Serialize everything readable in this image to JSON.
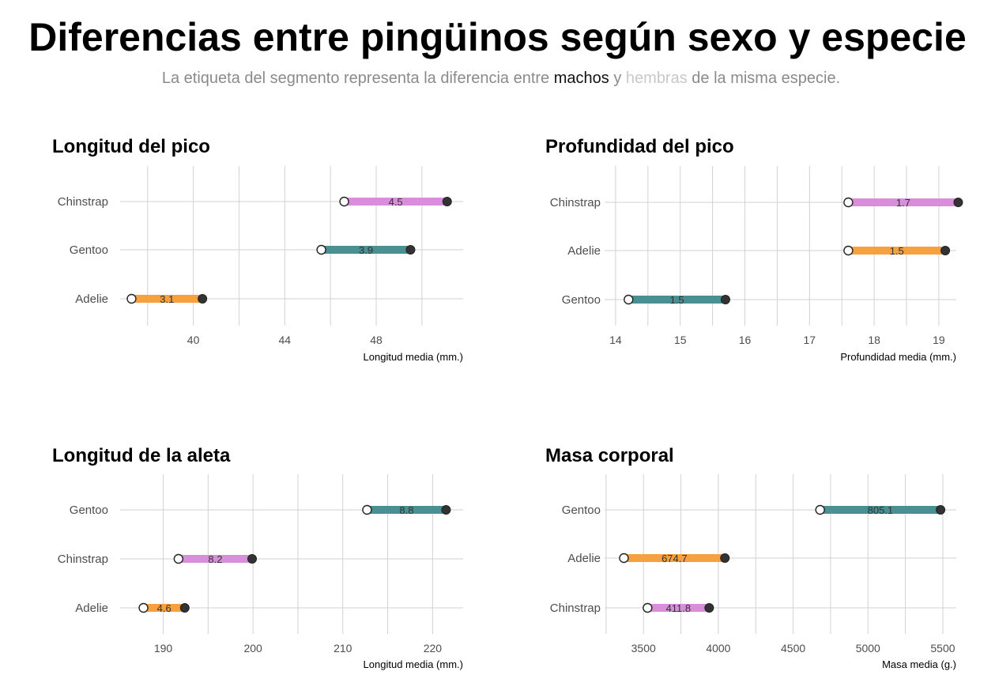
{
  "header": {
    "title": "Diferencias entre pingüinos según sexo y especie",
    "subtitle_pre": "La etiqueta del segmento representa la diferencia entre ",
    "subtitle_male": "machos",
    "subtitle_mid": " y ",
    "subtitle_female": "hembras",
    "subtitle_post": " de la misma especie."
  },
  "colors": {
    "Chinstrap": "#d88fd9",
    "Gentoo": "#4a8f91",
    "Adelie": "#f7a040",
    "male_point": "#333333",
    "female_point": "#ffffff",
    "grid": "#d2d2d2"
  },
  "chart_data": [
    {
      "type": "dumbbell",
      "title": "Longitud del pico",
      "xlabel": "Longitud media (mm.)",
      "xlim": [
        36.8,
        51.8
      ],
      "xticks": [
        40,
        44,
        48
      ],
      "categories": [
        "Chinstrap",
        "Gentoo",
        "Adelie"
      ],
      "series": [
        {
          "name": "hembras",
          "values": [
            46.6,
            45.6,
            37.3
          ]
        },
        {
          "name": "machos",
          "values": [
            51.1,
            49.5,
            40.4
          ]
        }
      ],
      "labels": [
        "4.5",
        "3.9",
        "3.1"
      ]
    },
    {
      "type": "dumbbell",
      "title": "Profundidad del pico",
      "xlabel": "Profundidad media (mm.)",
      "xlim": [
        13.83,
        19.27
      ],
      "xticks": [
        14,
        15,
        16,
        17,
        18,
        19
      ],
      "categories": [
        "Chinstrap",
        "Adelie",
        "Gentoo"
      ],
      "series": [
        {
          "name": "hembras",
          "values": [
            17.6,
            17.6,
            14.2
          ]
        },
        {
          "name": "machos",
          "values": [
            19.3,
            19.1,
            15.7
          ]
        }
      ],
      "labels": [
        "1.7",
        "1.5",
        "1.5"
      ]
    },
    {
      "type": "dumbbell",
      "title": "Longitud de la aleta",
      "xlabel": "Longitud media (mm.)",
      "xlim": [
        185.2,
        223.4
      ],
      "xticks": [
        190,
        200,
        210,
        220
      ],
      "categories": [
        "Gentoo",
        "Chinstrap",
        "Adelie"
      ],
      "series": [
        {
          "name": "hembras",
          "values": [
            212.7,
            191.7,
            187.8
          ]
        },
        {
          "name": "machos",
          "values": [
            221.5,
            199.9,
            192.4
          ]
        }
      ],
      "labels": [
        "8.8",
        "8.2",
        "4.6"
      ]
    },
    {
      "type": "dumbbell",
      "title": "Masa corporal",
      "xlabel": "Masa media (g.)",
      "xlim": [
        3240,
        5590
      ],
      "xticks": [
        3500,
        4000,
        4500,
        5000,
        5500
      ],
      "categories": [
        "Gentoo",
        "Adelie",
        "Chinstrap"
      ],
      "series": [
        {
          "name": "hembras",
          "values": [
            4680,
            3369,
            3527
          ]
        },
        {
          "name": "machos",
          "values": [
            5485,
            4044,
            3939
          ]
        }
      ],
      "labels": [
        "805.1",
        "674.7",
        "411.8"
      ]
    }
  ]
}
